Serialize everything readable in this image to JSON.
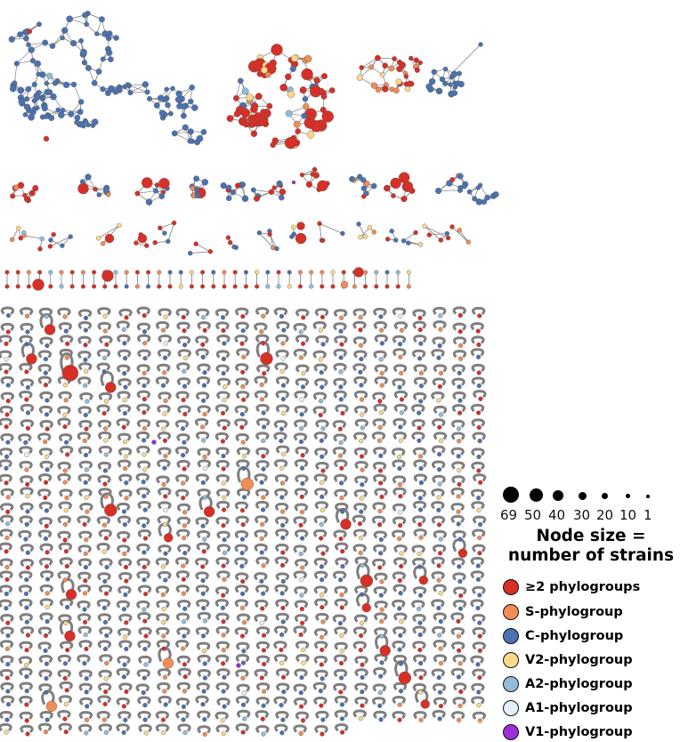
{
  "size_legend": {
    "title_line1": "Node size =",
    "title_line2": "number of strains",
    "labels": [
      "69",
      "50",
      "40",
      "30",
      "20",
      "10",
      "1"
    ]
  },
  "phylogroups": [
    {
      "label": "≥2 phylogroups",
      "color": "#d63027"
    },
    {
      "label": "S-phylogroup",
      "color": "#f28c55"
    },
    {
      "label": "C-phylogroup",
      "color": "#4a72b0"
    },
    {
      "label": "V2-phylogroup",
      "color": "#fbd98a"
    },
    {
      "label": "A2-phylogroup",
      "color": "#91bcdc"
    },
    {
      "label": "A1-phylogroup",
      "color": "#e2f2f8"
    },
    {
      "label": "V1-phylogroup",
      "color": "#9b30d8"
    }
  ],
  "edge_color": "#7f7f7f"
}
